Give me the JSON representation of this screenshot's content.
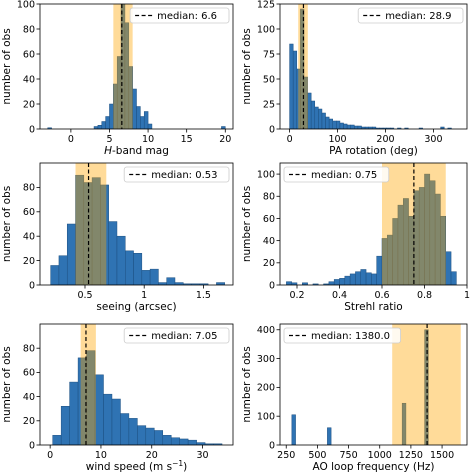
{
  "colors": {
    "bar_fill": "#2f73b3",
    "bar_edge": "#1c4f80",
    "band_fill": "#ffa500",
    "band_alpha": 0.4,
    "median_line": "#000000"
  },
  "chart_data": [
    {
      "type": "bar",
      "xlabel_prefix": "H",
      "xlabel_suffix": "-band mag",
      "ylabel": "number of obs",
      "legend_label": "median: 6.6",
      "legend_position": "top-right",
      "median": 6.6,
      "band": [
        5.5,
        8.0
      ],
      "xlim": [
        -4,
        21
      ],
      "ylim": [
        0,
        100
      ],
      "xticks": [
        0,
        5,
        10,
        15,
        20
      ],
      "yticks": [
        0,
        20,
        40,
        60,
        80,
        100
      ],
      "bin_width": 0.5,
      "bins": [
        [
          -3,
          1
        ],
        [
          3.0,
          2
        ],
        [
          3.5,
          3
        ],
        [
          4.0,
          6
        ],
        [
          4.5,
          10
        ],
        [
          5.0,
          20
        ],
        [
          5.5,
          36
        ],
        [
          6.0,
          58
        ],
        [
          6.5,
          100
        ],
        [
          7.0,
          85
        ],
        [
          7.5,
          50
        ],
        [
          8.0,
          32
        ],
        [
          8.5,
          18
        ],
        [
          9.0,
          10
        ],
        [
          9.5,
          14
        ],
        [
          10.0,
          4
        ],
        [
          19.5,
          2
        ]
      ]
    },
    {
      "type": "bar",
      "xlabel": "PA rotation (deg)",
      "ylabel": "number of obs",
      "legend_label": "median: 28.9",
      "legend_position": "top-right",
      "median": 28.9,
      "band": [
        18,
        38
      ],
      "xlim": [
        -20,
        370
      ],
      "ylim": [
        0,
        125
      ],
      "xticks": [
        0,
        100,
        200,
        300
      ],
      "yticks": [
        0,
        25,
        50,
        75,
        100,
        125
      ],
      "bin_width": 7.5,
      "bins": [
        [
          0,
          85
        ],
        [
          7.5,
          78
        ],
        [
          15,
          60
        ],
        [
          22.5,
          120
        ],
        [
          30,
          52
        ],
        [
          37.5,
          36
        ],
        [
          45,
          28
        ],
        [
          52.5,
          22
        ],
        [
          60,
          20
        ],
        [
          67.5,
          16
        ],
        [
          75,
          12
        ],
        [
          82.5,
          10
        ],
        [
          90,
          8
        ],
        [
          97.5,
          8
        ],
        [
          105,
          6
        ],
        [
          112.5,
          5
        ],
        [
          120,
          4
        ],
        [
          127.5,
          4
        ],
        [
          135,
          3
        ],
        [
          142.5,
          3
        ],
        [
          150,
          2
        ],
        [
          157.5,
          2
        ],
        [
          165,
          2
        ],
        [
          172.5,
          2
        ],
        [
          180,
          1
        ],
        [
          187.5,
          1
        ],
        [
          195,
          1
        ],
        [
          202.5,
          1
        ],
        [
          210,
          1
        ],
        [
          225,
          1
        ],
        [
          240,
          1
        ],
        [
          270,
          1
        ],
        [
          315,
          2
        ],
        [
          330,
          1
        ]
      ]
    },
    {
      "type": "bar",
      "xlabel": "seeing (arcsec)",
      "ylabel": "number of obs",
      "legend_label": "median: 0.53",
      "legend_position": "top-right",
      "median": 0.53,
      "band": [
        0.42,
        0.68
      ],
      "xlim": [
        0.12,
        1.75
      ],
      "ylim": [
        0,
        100
      ],
      "xticks": [
        0.5,
        1.0,
        1.5
      ],
      "yticks": [
        0,
        20,
        40,
        60,
        80
      ],
      "bin_width": 0.07,
      "bins": [
        [
          0.21,
          16
        ],
        [
          0.28,
          24
        ],
        [
          0.35,
          50
        ],
        [
          0.42,
          90
        ],
        [
          0.49,
          84
        ],
        [
          0.56,
          88
        ],
        [
          0.63,
          82
        ],
        [
          0.7,
          52
        ],
        [
          0.77,
          40
        ],
        [
          0.84,
          28
        ],
        [
          0.91,
          26
        ],
        [
          0.98,
          12
        ],
        [
          1.05,
          13
        ],
        [
          1.12,
          2
        ],
        [
          1.19,
          6
        ],
        [
          1.26,
          2
        ],
        [
          1.33,
          1
        ],
        [
          1.4,
          1
        ],
        [
          1.47,
          1
        ],
        [
          1.61,
          2
        ]
      ]
    },
    {
      "type": "bar",
      "xlabel": "Strehl ratio",
      "ylabel": "number of obs",
      "legend_label": "median: 0.75",
      "legend_position": "top-left",
      "median": 0.75,
      "band": [
        0.6,
        0.9
      ],
      "xlim": [
        0.12,
        1.0
      ],
      "ylim": [
        0,
        110
      ],
      "xticks": [
        0.2,
        0.4,
        0.6,
        0.8,
        1.0
      ],
      "yticks": [
        0,
        20,
        40,
        60,
        80,
        100
      ],
      "bin_width": 0.025,
      "bins": [
        [
          0.15,
          3
        ],
        [
          0.175,
          2
        ],
        [
          0.225,
          2
        ],
        [
          0.275,
          1
        ],
        [
          0.325,
          1
        ],
        [
          0.35,
          3
        ],
        [
          0.375,
          5
        ],
        [
          0.4,
          6
        ],
        [
          0.425,
          8
        ],
        [
          0.45,
          10
        ],
        [
          0.475,
          12
        ],
        [
          0.5,
          14
        ],
        [
          0.525,
          11
        ],
        [
          0.55,
          10
        ],
        [
          0.575,
          26
        ],
        [
          0.6,
          42
        ],
        [
          0.625,
          45
        ],
        [
          0.65,
          60
        ],
        [
          0.675,
          72
        ],
        [
          0.7,
          78
        ],
        [
          0.725,
          62
        ],
        [
          0.75,
          85
        ],
        [
          0.775,
          88
        ],
        [
          0.8,
          100
        ],
        [
          0.825,
          94
        ],
        [
          0.85,
          82
        ],
        [
          0.875,
          62
        ],
        [
          0.9,
          30
        ],
        [
          0.925,
          12
        ]
      ]
    },
    {
      "type": "bar",
      "xlabel_prefix": "wind speed (m s",
      "xlabel_sup": "−1",
      "xlabel_suffix": ")",
      "ylabel": "number of obs",
      "legend_label": "median: 7.05",
      "legend_position": "top-right",
      "median": 7.05,
      "band": [
        6,
        9
      ],
      "xlim": [
        -2,
        36
      ],
      "ylim": [
        0,
        100
      ],
      "xticks": [
        0,
        10,
        20,
        30
      ],
      "yticks": [
        0,
        20,
        40,
        60,
        80
      ],
      "bin_width": 1.67,
      "bins": [
        [
          0.5,
          8
        ],
        [
          2.17,
          32
        ],
        [
          3.83,
          52
        ],
        [
          5.5,
          72
        ],
        [
          7.17,
          78
        ],
        [
          8.83,
          58
        ],
        [
          10.5,
          42
        ],
        [
          12.17,
          38
        ],
        [
          13.83,
          26
        ],
        [
          15.5,
          22
        ],
        [
          17.17,
          16
        ],
        [
          18.83,
          14
        ],
        [
          20.5,
          12
        ],
        [
          22.17,
          8
        ],
        [
          23.83,
          6
        ],
        [
          25.5,
          5
        ],
        [
          27.17,
          4
        ],
        [
          28.83,
          2
        ],
        [
          30.5,
          1
        ],
        [
          32.17,
          1
        ]
      ]
    },
    {
      "type": "bar",
      "xlabel": "AO loop frequency (Hz)",
      "ylabel": "number of obs",
      "legend_label": "median: 1380.0",
      "legend_position": "top-left",
      "median": 1380.0,
      "band": [
        1100,
        1650
      ],
      "xlim": [
        200,
        1700
      ],
      "ylim": [
        0,
        420
      ],
      "xticks": [
        250,
        500,
        750,
        1000,
        1250,
        1500
      ],
      "yticks": [
        0,
        100,
        200,
        300,
        400
      ],
      "bin_width": 30,
      "bins": [
        [
          295,
          105
        ],
        [
          580,
          60
        ],
        [
          1180,
          145
        ],
        [
          1360,
          400
        ]
      ]
    }
  ]
}
